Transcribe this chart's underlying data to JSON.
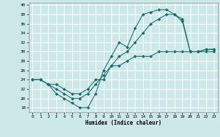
{
  "xlabel": "Humidex (Indice chaleur)",
  "bg_color": "#cce8e8",
  "grid_color": "#ffffff",
  "line_color": "#1a6b6b",
  "xlim": [
    -0.5,
    23.5
  ],
  "ylim": [
    17,
    40.5
  ],
  "xticks": [
    0,
    1,
    2,
    3,
    4,
    5,
    6,
    7,
    8,
    9,
    10,
    11,
    12,
    13,
    14,
    15,
    16,
    17,
    18,
    19,
    20,
    21,
    22,
    23
  ],
  "yticks": [
    18,
    20,
    22,
    24,
    26,
    28,
    30,
    32,
    34,
    36,
    38,
    40
  ],
  "curve1_x": [
    0,
    1,
    2,
    3,
    4,
    5,
    6,
    7,
    8,
    9,
    10,
    11,
    12,
    13,
    14,
    15,
    16,
    17,
    18,
    19,
    20,
    21,
    22,
    23
  ],
  "curve1_y": [
    24,
    24,
    23,
    21,
    20,
    19,
    18,
    18,
    21,
    26,
    29,
    32,
    31,
    35,
    38,
    38.5,
    39,
    39,
    38,
    36.5,
    30,
    30,
    30.5,
    30.5
  ],
  "curve2_x": [
    0,
    1,
    2,
    3,
    4,
    5,
    6,
    7,
    8,
    9,
    10,
    11,
    12,
    13,
    14,
    15,
    16,
    17,
    18,
    19,
    20,
    21,
    22,
    23
  ],
  "curve2_y": [
    24,
    24,
    23,
    23,
    22,
    21,
    21,
    22,
    24,
    24,
    27,
    27,
    28,
    29,
    29,
    29,
    30,
    30,
    30,
    30,
    30,
    30,
    30,
    30
  ],
  "curve3_x": [
    0,
    1,
    2,
    3,
    4,
    5,
    6,
    7,
    8,
    9,
    10,
    11,
    12,
    13,
    14,
    15,
    16,
    17,
    18,
    19,
    20,
    21,
    22,
    23
  ],
  "curve3_y": [
    24,
    24,
    23,
    22,
    21,
    20,
    20,
    21,
    23,
    25,
    27,
    29,
    30,
    32,
    34,
    36,
    37,
    38,
    38,
    37,
    30,
    30,
    30.5,
    30.5
  ]
}
